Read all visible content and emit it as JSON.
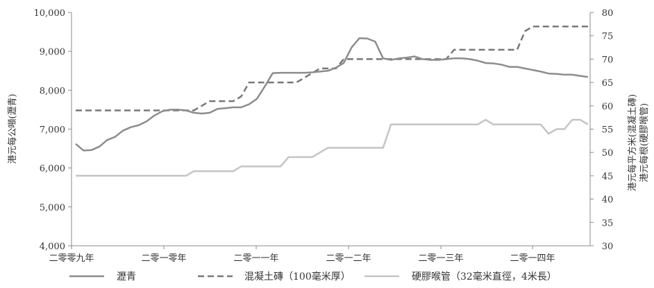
{
  "chart_data": {
    "type": "line",
    "x_ticks": [
      "二零零九年",
      "二零一零年",
      "二零一一年",
      "二零一二年",
      "二零一三年",
      "二零一四年"
    ],
    "left_axis": {
      "ylabel": "港元每公噸(瀝青)",
      "ylim": [
        4000,
        10000
      ],
      "ticks": [
        "4,000",
        "5,000",
        "6,000",
        "7,000",
        "8,000",
        "9,000",
        "10,000"
      ],
      "tick_values": [
        4000,
        5000,
        6000,
        7000,
        8000,
        9000,
        10000
      ]
    },
    "right_axis": {
      "ylabel_line1": "港元每平方米(混凝土磚)",
      "ylabel_line2": "港元每根(硬膠喉管)",
      "ylim": [
        30,
        80
      ],
      "ticks": [
        "30",
        "35",
        "40",
        "45",
        "50",
        "55",
        "60",
        "65",
        "70",
        "75",
        "80"
      ],
      "tick_values": [
        30,
        35,
        40,
        45,
        50,
        55,
        60,
        65,
        70,
        75,
        80
      ]
    },
    "grid": false,
    "legend_position": "bottom",
    "series": [
      {
        "name": "瀝青",
        "axis": "left",
        "style": "solid",
        "color": "#8c8c8c",
        "values": [
          6620,
          6450,
          6460,
          6550,
          6720,
          6800,
          6960,
          7050,
          7100,
          7200,
          7350,
          7460,
          7500,
          7500,
          7480,
          7420,
          7400,
          7420,
          7520,
          7540,
          7560,
          7560,
          7640,
          7780,
          8100,
          8440,
          8450,
          8450,
          8450,
          8450,
          8460,
          8480,
          8500,
          8580,
          8700,
          9100,
          9340,
          9330,
          9250,
          8820,
          8780,
          8820,
          8840,
          8870,
          8800,
          8780,
          8780,
          8800,
          8820,
          8820,
          8800,
          8760,
          8700,
          8690,
          8660,
          8600,
          8600,
          8560,
          8520,
          8480,
          8430,
          8420,
          8400,
          8400,
          8370,
          8340
        ]
      },
      {
        "name": "混凝土磚（100毫米厚）",
        "axis": "right",
        "style": "dashed",
        "color": "#777777",
        "values": [
          59,
          59,
          59,
          59,
          59,
          59,
          59,
          59,
          59,
          59,
          59,
          59,
          59,
          59,
          59,
          59,
          60,
          61,
          61,
          61,
          61,
          62,
          65,
          65,
          65,
          65,
          65,
          65,
          65,
          66,
          67,
          68,
          68,
          68,
          70,
          70,
          70,
          70,
          70,
          70,
          70,
          70,
          70,
          70,
          70,
          70,
          70,
          70,
          72,
          72,
          72,
          72,
          72,
          72,
          72,
          72,
          72,
          76,
          77,
          77,
          77,
          77,
          77,
          77,
          77,
          77
        ]
      },
      {
        "name": "硬膠喉管（32毫米直徑，4米長）",
        "axis": "right",
        "style": "solid",
        "color": "#c4c4c4",
        "values": [
          45,
          45,
          45,
          45,
          45,
          45,
          45,
          45,
          45,
          45,
          45,
          45,
          45,
          45,
          45,
          46,
          46,
          46,
          46,
          46,
          46,
          47,
          47,
          47,
          47,
          47,
          47,
          49,
          49,
          49,
          49,
          50,
          51,
          51,
          51,
          51,
          51,
          51,
          51,
          51,
          56,
          56,
          56,
          56,
          56,
          56,
          56,
          56,
          56,
          56,
          56,
          56,
          57,
          56,
          56,
          56,
          56,
          56,
          56,
          56,
          54,
          55,
          55,
          57,
          57,
          56
        ]
      }
    ]
  }
}
